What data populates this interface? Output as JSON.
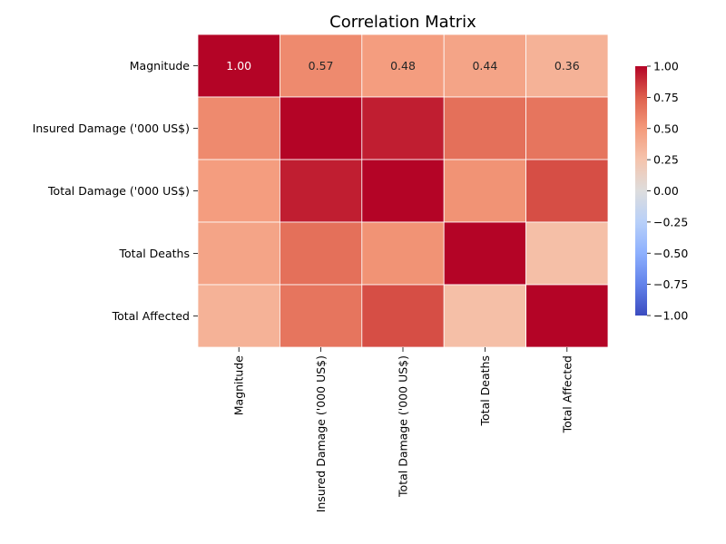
{
  "chart_data": {
    "type": "heatmap",
    "title": "Correlation Matrix",
    "row_labels": [
      "Magnitude",
      "Insured Damage ('000 US$)",
      "Total Damage ('000 US$)",
      "Total Deaths",
      "Total Affected"
    ],
    "col_labels": [
      "Magnitude",
      "Insured Damage ('000 US$)",
      "Total Damage ('000 US$)",
      "Total Deaths",
      "Total Affected"
    ],
    "values": [
      [
        1.0,
        0.57,
        0.48,
        0.44,
        0.36
      ],
      [
        0.57,
        1.0,
        0.93,
        0.68,
        0.66
      ],
      [
        0.48,
        0.93,
        1.0,
        0.53,
        0.8
      ],
      [
        0.44,
        0.68,
        0.53,
        1.0,
        0.28
      ],
      [
        0.36,
        0.66,
        0.8,
        0.28,
        1.0
      ]
    ],
    "annotations": [
      {
        "row": 0,
        "col": 0,
        "text": "1.00"
      },
      {
        "row": 0,
        "col": 1,
        "text": "0.57"
      },
      {
        "row": 0,
        "col": 2,
        "text": "0.48"
      },
      {
        "row": 0,
        "col": 3,
        "text": "0.44"
      },
      {
        "row": 0,
        "col": 4,
        "text": "0.36"
      }
    ],
    "colormap": "coolwarm",
    "vmin": -1.0,
    "vmax": 1.0,
    "colorbar_ticks": [
      "1.00",
      "0.75",
      "0.50",
      "0.25",
      "0.00",
      "−0.25",
      "−0.50",
      "−0.75",
      "−1.00"
    ],
    "colorbar_tick_values": [
      1.0,
      0.75,
      0.5,
      0.25,
      0.0,
      -0.25,
      -0.5,
      -0.75,
      -1.0
    ],
    "colorbar_placement": "right",
    "grid": false
  }
}
